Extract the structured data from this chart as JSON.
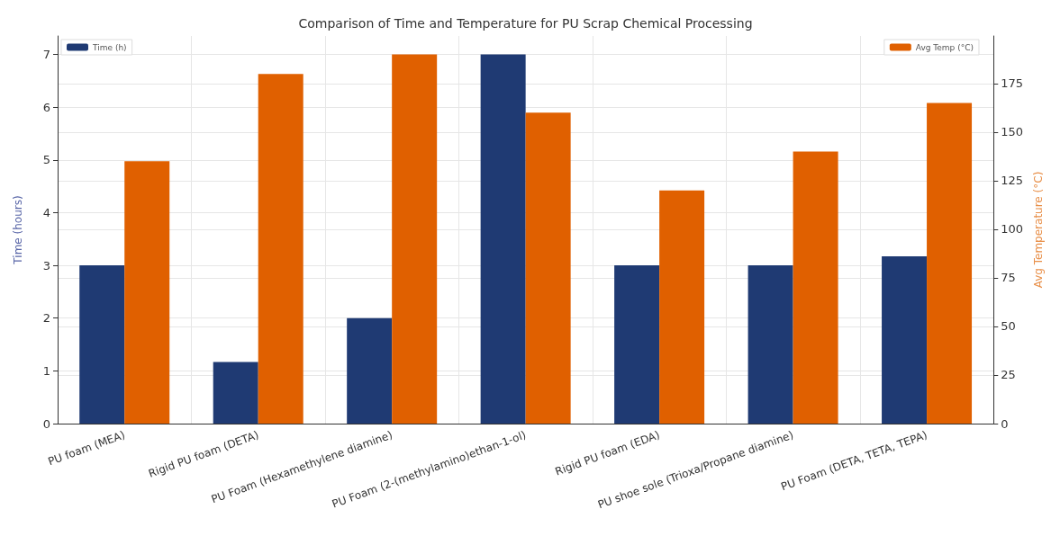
{
  "chart_data": {
    "type": "bar",
    "title": "Comparison of Time and Temperature for PU Scrap Chemical Processing",
    "categories": [
      "PU foam (MEA)",
      "Rigid PU foam (DETA)",
      "PU Foam (Hexamethylene diamine)",
      "PU Foam (2-(methylamino)ethan-1-ol)",
      "Rigid PU foam (EDA)",
      "PU shoe sole (Trioxa/Propane diamine)",
      "PU Foam (DETA, TETA, TEPA)"
    ],
    "series": [
      {
        "name": "Time (h)",
        "color": "#1f3a73",
        "values": [
          3,
          1.17,
          2,
          7,
          3,
          3,
          3.17
        ]
      },
      {
        "name": "Avg Temp (°C)",
        "color": "#e06000",
        "axis": "y2",
        "values": [
          135,
          180,
          190,
          160,
          120,
          140,
          165
        ]
      }
    ],
    "ylabel": "Time (hours)",
    "y2label": "Avg Temperature (°C)",
    "ylim": [
      0,
      7.35
    ],
    "yticks": [
      0,
      1,
      2,
      3,
      4,
      5,
      6,
      7
    ],
    "y2lim": [
      0,
      199.5
    ],
    "y2ticks": [
      0,
      25,
      50,
      75,
      100,
      125,
      150,
      175
    ],
    "grid": true,
    "legend": "top"
  }
}
